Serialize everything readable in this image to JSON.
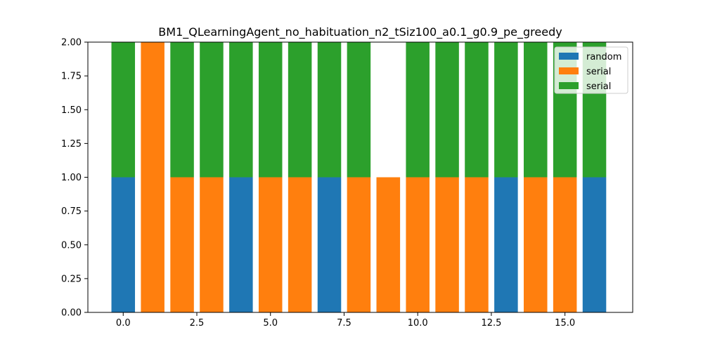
{
  "chart_data": {
    "type": "bar",
    "title": "BM1_QLearningAgent_no_habituation_n2_tSiz100_a0.1_g0.9_pe_greedy",
    "xlabel": "",
    "ylabel": "",
    "xlim": [
      -1.2,
      17.3
    ],
    "ylim": [
      0,
      2.0
    ],
    "x_ticks": [
      "0.0",
      "2.5",
      "5.0",
      "7.5",
      "10.0",
      "12.5",
      "15.0"
    ],
    "y_ticks": [
      "0.00",
      "0.25",
      "0.50",
      "0.75",
      "1.00",
      "1.25",
      "1.50",
      "1.75",
      "2.00"
    ],
    "bar_width": 0.8,
    "legend_position": "top-right",
    "x": [
      0,
      1,
      2,
      3,
      4,
      5,
      6,
      7,
      8,
      9,
      10,
      11,
      12,
      13,
      14,
      15,
      16
    ],
    "series": [
      {
        "name": "random",
        "color": "#1f77b4",
        "bottom": [
          0,
          0,
          0,
          0,
          0,
          0,
          0,
          0,
          0,
          0,
          0,
          0,
          0,
          0,
          0,
          0,
          0
        ],
        "values": [
          1,
          0,
          0,
          0,
          1,
          0,
          0,
          1,
          0,
          1,
          0,
          0,
          0,
          1,
          0,
          0,
          1
        ]
      },
      {
        "name": "serial",
        "color": "#ff7f0e",
        "bottom": [
          0,
          0,
          0,
          0,
          0,
          0,
          0,
          0,
          0,
          0,
          0,
          0,
          0,
          0,
          0,
          0,
          0
        ],
        "values": [
          0,
          2,
          1,
          1,
          0,
          1,
          1,
          0,
          1,
          1,
          1,
          1,
          1,
          0,
          1,
          1,
          0
        ]
      },
      {
        "name": "serial",
        "color": "#2ca02c",
        "bottom": [
          1,
          2,
          1,
          1,
          1,
          1,
          1,
          1,
          1,
          2,
          1,
          1,
          1,
          1,
          1,
          1,
          1
        ],
        "values": [
          1,
          0,
          1,
          1,
          1,
          1,
          1,
          1,
          1,
          0,
          1,
          1,
          1,
          1,
          1,
          1,
          1
        ]
      }
    ]
  }
}
